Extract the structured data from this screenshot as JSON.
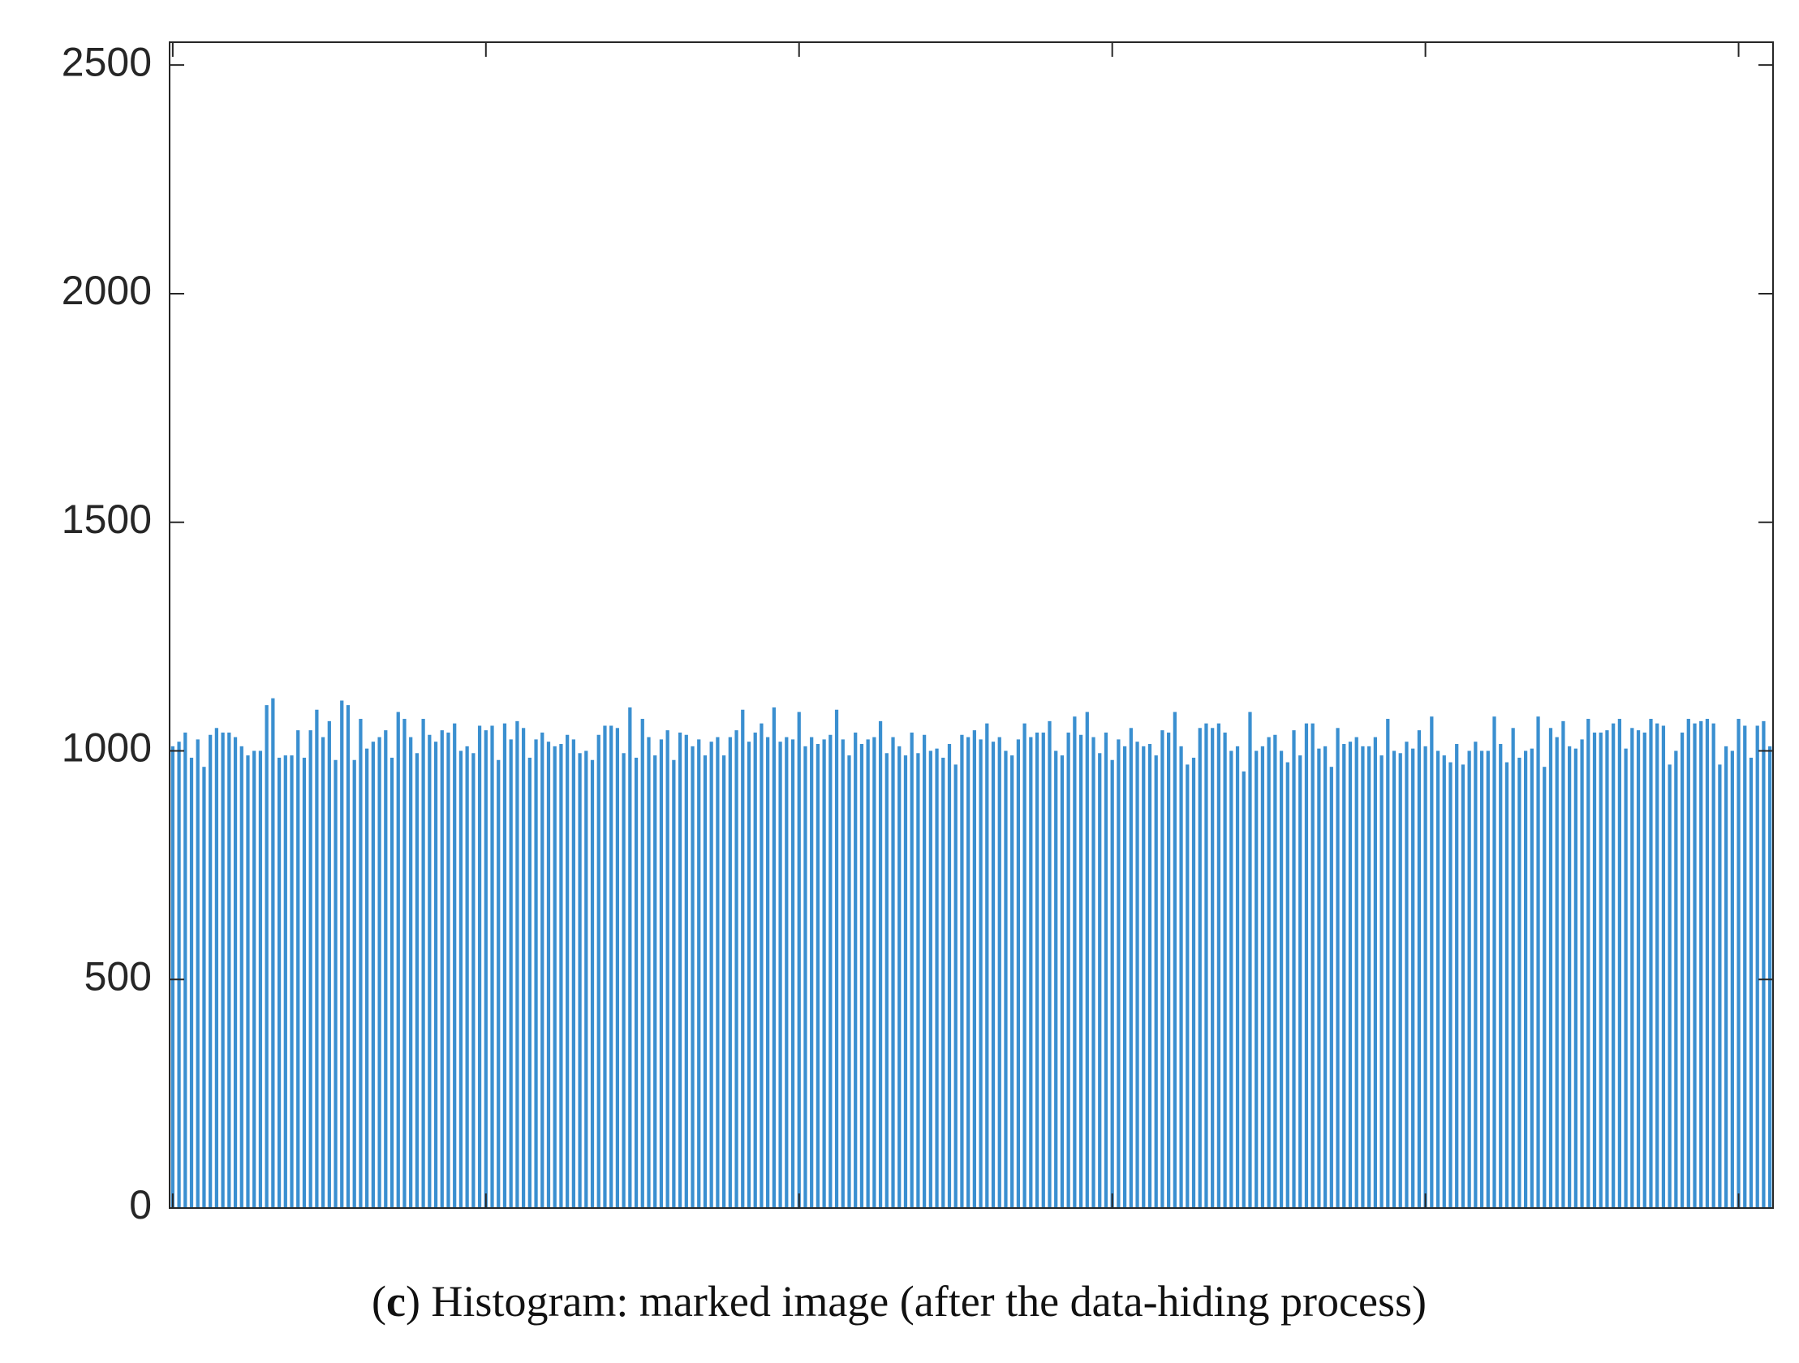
{
  "chart_data": {
    "type": "histogram",
    "x": [
      0,
      1,
      2,
      3,
      4,
      5,
      6,
      7,
      8,
      9,
      10,
      11,
      12,
      13,
      14,
      15,
      16,
      17,
      18,
      19,
      20,
      21,
      22,
      23,
      24,
      25,
      26,
      27,
      28,
      29,
      30,
      31,
      32,
      33,
      34,
      35,
      36,
      37,
      38,
      39,
      40,
      41,
      42,
      43,
      44,
      45,
      46,
      47,
      48,
      49,
      50,
      51,
      52,
      53,
      54,
      55,
      56,
      57,
      58,
      59,
      60,
      61,
      62,
      63,
      64,
      65,
      66,
      67,
      68,
      69,
      70,
      71,
      72,
      73,
      74,
      75,
      76,
      77,
      78,
      79,
      80,
      81,
      82,
      83,
      84,
      85,
      86,
      87,
      88,
      89,
      90,
      91,
      92,
      93,
      94,
      95,
      96,
      97,
      98,
      99,
      100,
      101,
      102,
      103,
      104,
      105,
      106,
      107,
      108,
      109,
      110,
      111,
      112,
      113,
      114,
      115,
      116,
      117,
      118,
      119,
      120,
      121,
      122,
      123,
      124,
      125,
      126,
      127,
      128,
      129,
      130,
      131,
      132,
      133,
      134,
      135,
      136,
      137,
      138,
      139,
      140,
      141,
      142,
      143,
      144,
      145,
      146,
      147,
      148,
      149,
      150,
      151,
      152,
      153,
      154,
      155,
      156,
      157,
      158,
      159,
      160,
      161,
      162,
      163,
      164,
      165,
      166,
      167,
      168,
      169,
      170,
      171,
      172,
      173,
      174,
      175,
      176,
      177,
      178,
      179,
      180,
      181,
      182,
      183,
      184,
      185,
      186,
      187,
      188,
      189,
      190,
      191,
      192,
      193,
      194,
      195,
      196,
      197,
      198,
      199,
      200,
      201,
      202,
      203,
      204,
      205,
      206,
      207,
      208,
      209,
      210,
      211,
      212,
      213,
      214,
      215,
      216,
      217,
      218,
      219,
      220,
      221,
      222,
      223,
      224,
      225,
      226,
      227,
      228,
      229,
      230,
      231,
      232,
      233,
      234,
      235,
      236,
      237,
      238,
      239,
      240,
      241,
      242,
      243,
      244,
      245,
      246,
      247,
      248,
      249,
      250,
      251,
      252,
      253,
      254,
      255
    ],
    "values": [
      1010,
      1020,
      1040,
      985,
      1025,
      965,
      1035,
      1050,
      1040,
      1040,
      1030,
      1010,
      990,
      1000,
      1000,
      1100,
      1115,
      985,
      990,
      990,
      1045,
      985,
      1045,
      1090,
      1030,
      1065,
      980,
      1110,
      1100,
      980,
      1070,
      1005,
      1020,
      1030,
      1045,
      985,
      1085,
      1070,
      1030,
      995,
      1070,
      1035,
      1020,
      1045,
      1040,
      1060,
      1000,
      1010,
      995,
      1055,
      1045,
      1055,
      980,
      1060,
      1025,
      1065,
      1050,
      985,
      1025,
      1040,
      1020,
      1010,
      1015,
      1035,
      1025,
      995,
      1000,
      980,
      1035,
      1055,
      1055,
      1050,
      995,
      1095,
      985,
      1070,
      1030,
      990,
      1025,
      1045,
      980,
      1040,
      1035,
      1010,
      1025,
      990,
      1020,
      1030,
      990,
      1030,
      1045,
      1090,
      1020,
      1040,
      1060,
      1030,
      1095,
      1020,
      1030,
      1025,
      1085,
      1010,
      1030,
      1015,
      1025,
      1035,
      1090,
      1025,
      990,
      1040,
      1015,
      1025,
      1030,
      1065,
      995,
      1030,
      1010,
      990,
      1040,
      995,
      1035,
      1000,
      1005,
      985,
      1015,
      970,
      1035,
      1030,
      1045,
      1025,
      1060,
      1020,
      1030,
      1000,
      990,
      1025,
      1060,
      1030,
      1040,
      1040,
      1065,
      1000,
      990,
      1040,
      1075,
      1035,
      1085,
      1030,
      995,
      1040,
      980,
      1025,
      1010,
      1050,
      1020,
      1010,
      1015,
      990,
      1045,
      1040,
      1085,
      1010,
      970,
      985,
      1050,
      1060,
      1050,
      1060,
      1040,
      1000,
      1010,
      955,
      1085,
      1000,
      1010,
      1030,
      1035,
      1000,
      975,
      1045,
      990,
      1060,
      1060,
      1005,
      1010,
      965,
      1050,
      1015,
      1020,
      1030,
      1010,
      1010,
      1030,
      990,
      1070,
      1000,
      995,
      1020,
      1005,
      1045,
      1010,
      1075,
      1000,
      990,
      975,
      1015,
      970,
      1000,
      1020,
      1000,
      1000,
      1075,
      1015,
      975,
      1050,
      985,
      1000,
      1005,
      1075,
      965,
      1050,
      1030,
      1065,
      1010,
      1005,
      1025,
      1070,
      1040,
      1040,
      1045,
      1060,
      1070,
      1005,
      1050,
      1045,
      1040,
      1070,
      1060,
      1055,
      970,
      1000,
      1040,
      1070,
      1060,
      1065,
      1070,
      1060,
      970,
      1010,
      1000,
      1070,
      1055,
      985,
      1055,
      1065,
      1010
    ],
    "color": "#3a8fd0",
    "xlim": [
      -0.5,
      255.5
    ],
    "xticks": [
      0,
      50,
      100,
      150,
      200,
      250
    ],
    "ylim": [
      0,
      2550
    ],
    "yticks": [
      0,
      500,
      1000,
      1500,
      2000,
      2500
    ],
    "caption": [
      "(",
      "c",
      ") Histogram: marked image (after the data-hiding process)"
    ]
  }
}
